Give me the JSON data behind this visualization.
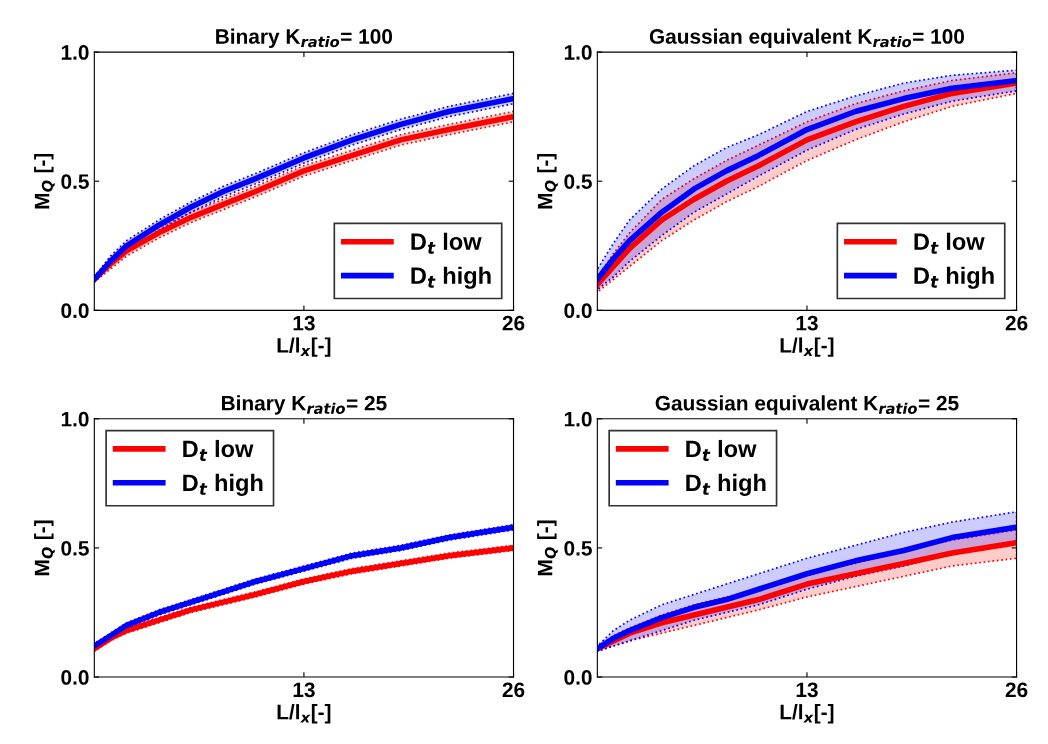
{
  "chart_data": [
    {
      "type": "line",
      "title": "Binary K$_{ratio}$= 100",
      "xlabel": "L/l$_{x}$[-]",
      "ylabel": "M$_{Q}$ [-]",
      "xlim": [
        0,
        26
      ],
      "xticks": [
        13,
        26
      ],
      "ylim": [
        0,
        1
      ],
      "yticks": [
        {
          "value": 0,
          "label": "0.0"
        },
        {
          "value": 0.5,
          "label": "0.5"
        },
        {
          "value": 1,
          "label": "1.0"
        }
      ],
      "legend": "bottom right",
      "x": [
        0,
        1,
        2,
        4,
        6,
        8,
        10,
        13,
        16,
        19,
        22,
        26
      ],
      "series": [
        {
          "name": "D$_{t}$ low",
          "color": "#ff0000",
          "values": [
            0.12,
            0.18,
            0.23,
            0.3,
            0.36,
            0.41,
            0.46,
            0.54,
            0.6,
            0.66,
            0.7,
            0.75
          ],
          "lower": [
            0.11,
            0.16,
            0.21,
            0.28,
            0.34,
            0.39,
            0.44,
            0.52,
            0.58,
            0.64,
            0.68,
            0.73
          ],
          "upper": [
            0.13,
            0.2,
            0.25,
            0.32,
            0.38,
            0.43,
            0.48,
            0.56,
            0.62,
            0.68,
            0.72,
            0.77
          ]
        },
        {
          "name": "D$_{t}$ high",
          "color": "#0000ff",
          "values": [
            0.12,
            0.19,
            0.25,
            0.33,
            0.4,
            0.46,
            0.51,
            0.59,
            0.66,
            0.72,
            0.77,
            0.82
          ],
          "lower": [
            0.11,
            0.17,
            0.23,
            0.31,
            0.38,
            0.44,
            0.49,
            0.57,
            0.64,
            0.7,
            0.75,
            0.8
          ],
          "upper": [
            0.13,
            0.21,
            0.27,
            0.35,
            0.42,
            0.48,
            0.53,
            0.61,
            0.68,
            0.74,
            0.79,
            0.84
          ]
        }
      ]
    },
    {
      "type": "line",
      "title": "Gaussian equivalent K$_{ratio}$= 100",
      "xlabel": "L/l$_{x}$[-]",
      "ylabel": "M$_{Q}$ [-]",
      "xlim": [
        0,
        26
      ],
      "xticks": [
        13,
        26
      ],
      "ylim": [
        0,
        1
      ],
      "yticks": [
        {
          "value": 0,
          "label": "0.0"
        },
        {
          "value": 0.5,
          "label": "0.5"
        },
        {
          "value": 1,
          "label": "1.0"
        }
      ],
      "legend": "bottom right",
      "x": [
        0,
        1,
        2,
        4,
        6,
        8,
        10,
        13,
        16,
        19,
        22,
        26
      ],
      "series": [
        {
          "name": "D$_{t}$ low",
          "color": "#ff0000",
          "values": [
            0.1,
            0.17,
            0.24,
            0.35,
            0.43,
            0.5,
            0.56,
            0.66,
            0.73,
            0.79,
            0.84,
            0.88
          ],
          "lower": [
            0.07,
            0.12,
            0.17,
            0.27,
            0.35,
            0.42,
            0.48,
            0.58,
            0.66,
            0.73,
            0.79,
            0.84
          ],
          "upper": [
            0.13,
            0.22,
            0.3,
            0.43,
            0.51,
            0.58,
            0.64,
            0.73,
            0.8,
            0.85,
            0.89,
            0.92
          ]
        },
        {
          "name": "D$_{t}$ high",
          "color": "#0000ff",
          "values": [
            0.12,
            0.2,
            0.27,
            0.38,
            0.47,
            0.54,
            0.6,
            0.7,
            0.77,
            0.82,
            0.86,
            0.89
          ],
          "lower": [
            0.08,
            0.13,
            0.19,
            0.29,
            0.38,
            0.45,
            0.52,
            0.62,
            0.7,
            0.76,
            0.81,
            0.85
          ],
          "upper": [
            0.16,
            0.26,
            0.35,
            0.47,
            0.56,
            0.63,
            0.68,
            0.77,
            0.83,
            0.88,
            0.91,
            0.93
          ]
        }
      ]
    },
    {
      "type": "line",
      "title": "Binary K$_{ratio}$= 25",
      "xlabel": "L/l$_{x}$[-]",
      "ylabel": "M$_{Q}$ [-]",
      "xlim": [
        0,
        26
      ],
      "xticks": [
        13,
        26
      ],
      "ylim": [
        0,
        1
      ],
      "yticks": [
        {
          "value": 0,
          "label": "0.0"
        },
        {
          "value": 0.5,
          "label": "0.5"
        },
        {
          "value": 1,
          "label": "1.0"
        }
      ],
      "legend": "top left",
      "x": [
        0,
        1,
        2,
        4,
        6,
        8,
        10,
        13,
        16,
        19,
        22,
        26
      ],
      "series": [
        {
          "name": "D$_{t}$ low",
          "color": "#ff0000",
          "values": [
            0.11,
            0.15,
            0.18,
            0.22,
            0.26,
            0.29,
            0.32,
            0.37,
            0.41,
            0.44,
            0.47,
            0.5
          ],
          "lower": [
            0.1,
            0.14,
            0.17,
            0.21,
            0.25,
            0.28,
            0.31,
            0.36,
            0.4,
            0.43,
            0.46,
            0.49
          ],
          "upper": [
            0.12,
            0.16,
            0.19,
            0.23,
            0.27,
            0.3,
            0.33,
            0.38,
            0.42,
            0.45,
            0.48,
            0.51
          ]
        },
        {
          "name": "D$_{t}$ high",
          "color": "#0000ff",
          "values": [
            0.12,
            0.16,
            0.2,
            0.25,
            0.29,
            0.33,
            0.37,
            0.42,
            0.47,
            0.5,
            0.54,
            0.58
          ],
          "lower": [
            0.11,
            0.15,
            0.19,
            0.24,
            0.28,
            0.32,
            0.36,
            0.41,
            0.46,
            0.49,
            0.53,
            0.57
          ],
          "upper": [
            0.13,
            0.17,
            0.21,
            0.26,
            0.3,
            0.34,
            0.38,
            0.43,
            0.48,
            0.51,
            0.55,
            0.59
          ]
        }
      ]
    },
    {
      "type": "line",
      "title": "Gaussian equivalent K$_{ratio}$= 25",
      "xlabel": "L/l$_{x}$[-]",
      "ylabel": "M$_{Q}$ [-]",
      "xlim": [
        0,
        26
      ],
      "xticks": [
        13,
        26
      ],
      "ylim": [
        0,
        1
      ],
      "yticks": [
        {
          "value": 0,
          "label": "0.0"
        },
        {
          "value": 0.5,
          "label": "0.5"
        },
        {
          "value": 1,
          "label": "1.0"
        }
      ],
      "legend": "top left",
      "x": [
        0,
        1,
        2,
        4,
        6,
        8,
        10,
        13,
        16,
        19,
        22,
        26
      ],
      "series": [
        {
          "name": "D$_{t}$ low",
          "color": "#ff0000",
          "values": [
            0.11,
            0.14,
            0.17,
            0.21,
            0.24,
            0.27,
            0.3,
            0.36,
            0.4,
            0.44,
            0.48,
            0.52
          ],
          "lower": [
            0.1,
            0.12,
            0.14,
            0.17,
            0.2,
            0.23,
            0.26,
            0.31,
            0.35,
            0.39,
            0.43,
            0.46
          ],
          "upper": [
            0.12,
            0.16,
            0.19,
            0.24,
            0.28,
            0.31,
            0.34,
            0.4,
            0.44,
            0.49,
            0.53,
            0.57
          ]
        },
        {
          "name": "D$_{t}$ high",
          "color": "#0000ff",
          "values": [
            0.11,
            0.15,
            0.18,
            0.23,
            0.27,
            0.3,
            0.34,
            0.4,
            0.45,
            0.49,
            0.54,
            0.58
          ],
          "lower": [
            0.1,
            0.12,
            0.14,
            0.18,
            0.22,
            0.25,
            0.28,
            0.34,
            0.39,
            0.43,
            0.48,
            0.52
          ],
          "upper": [
            0.12,
            0.18,
            0.22,
            0.28,
            0.32,
            0.36,
            0.4,
            0.46,
            0.51,
            0.56,
            0.6,
            0.64
          ]
        }
      ]
    }
  ]
}
